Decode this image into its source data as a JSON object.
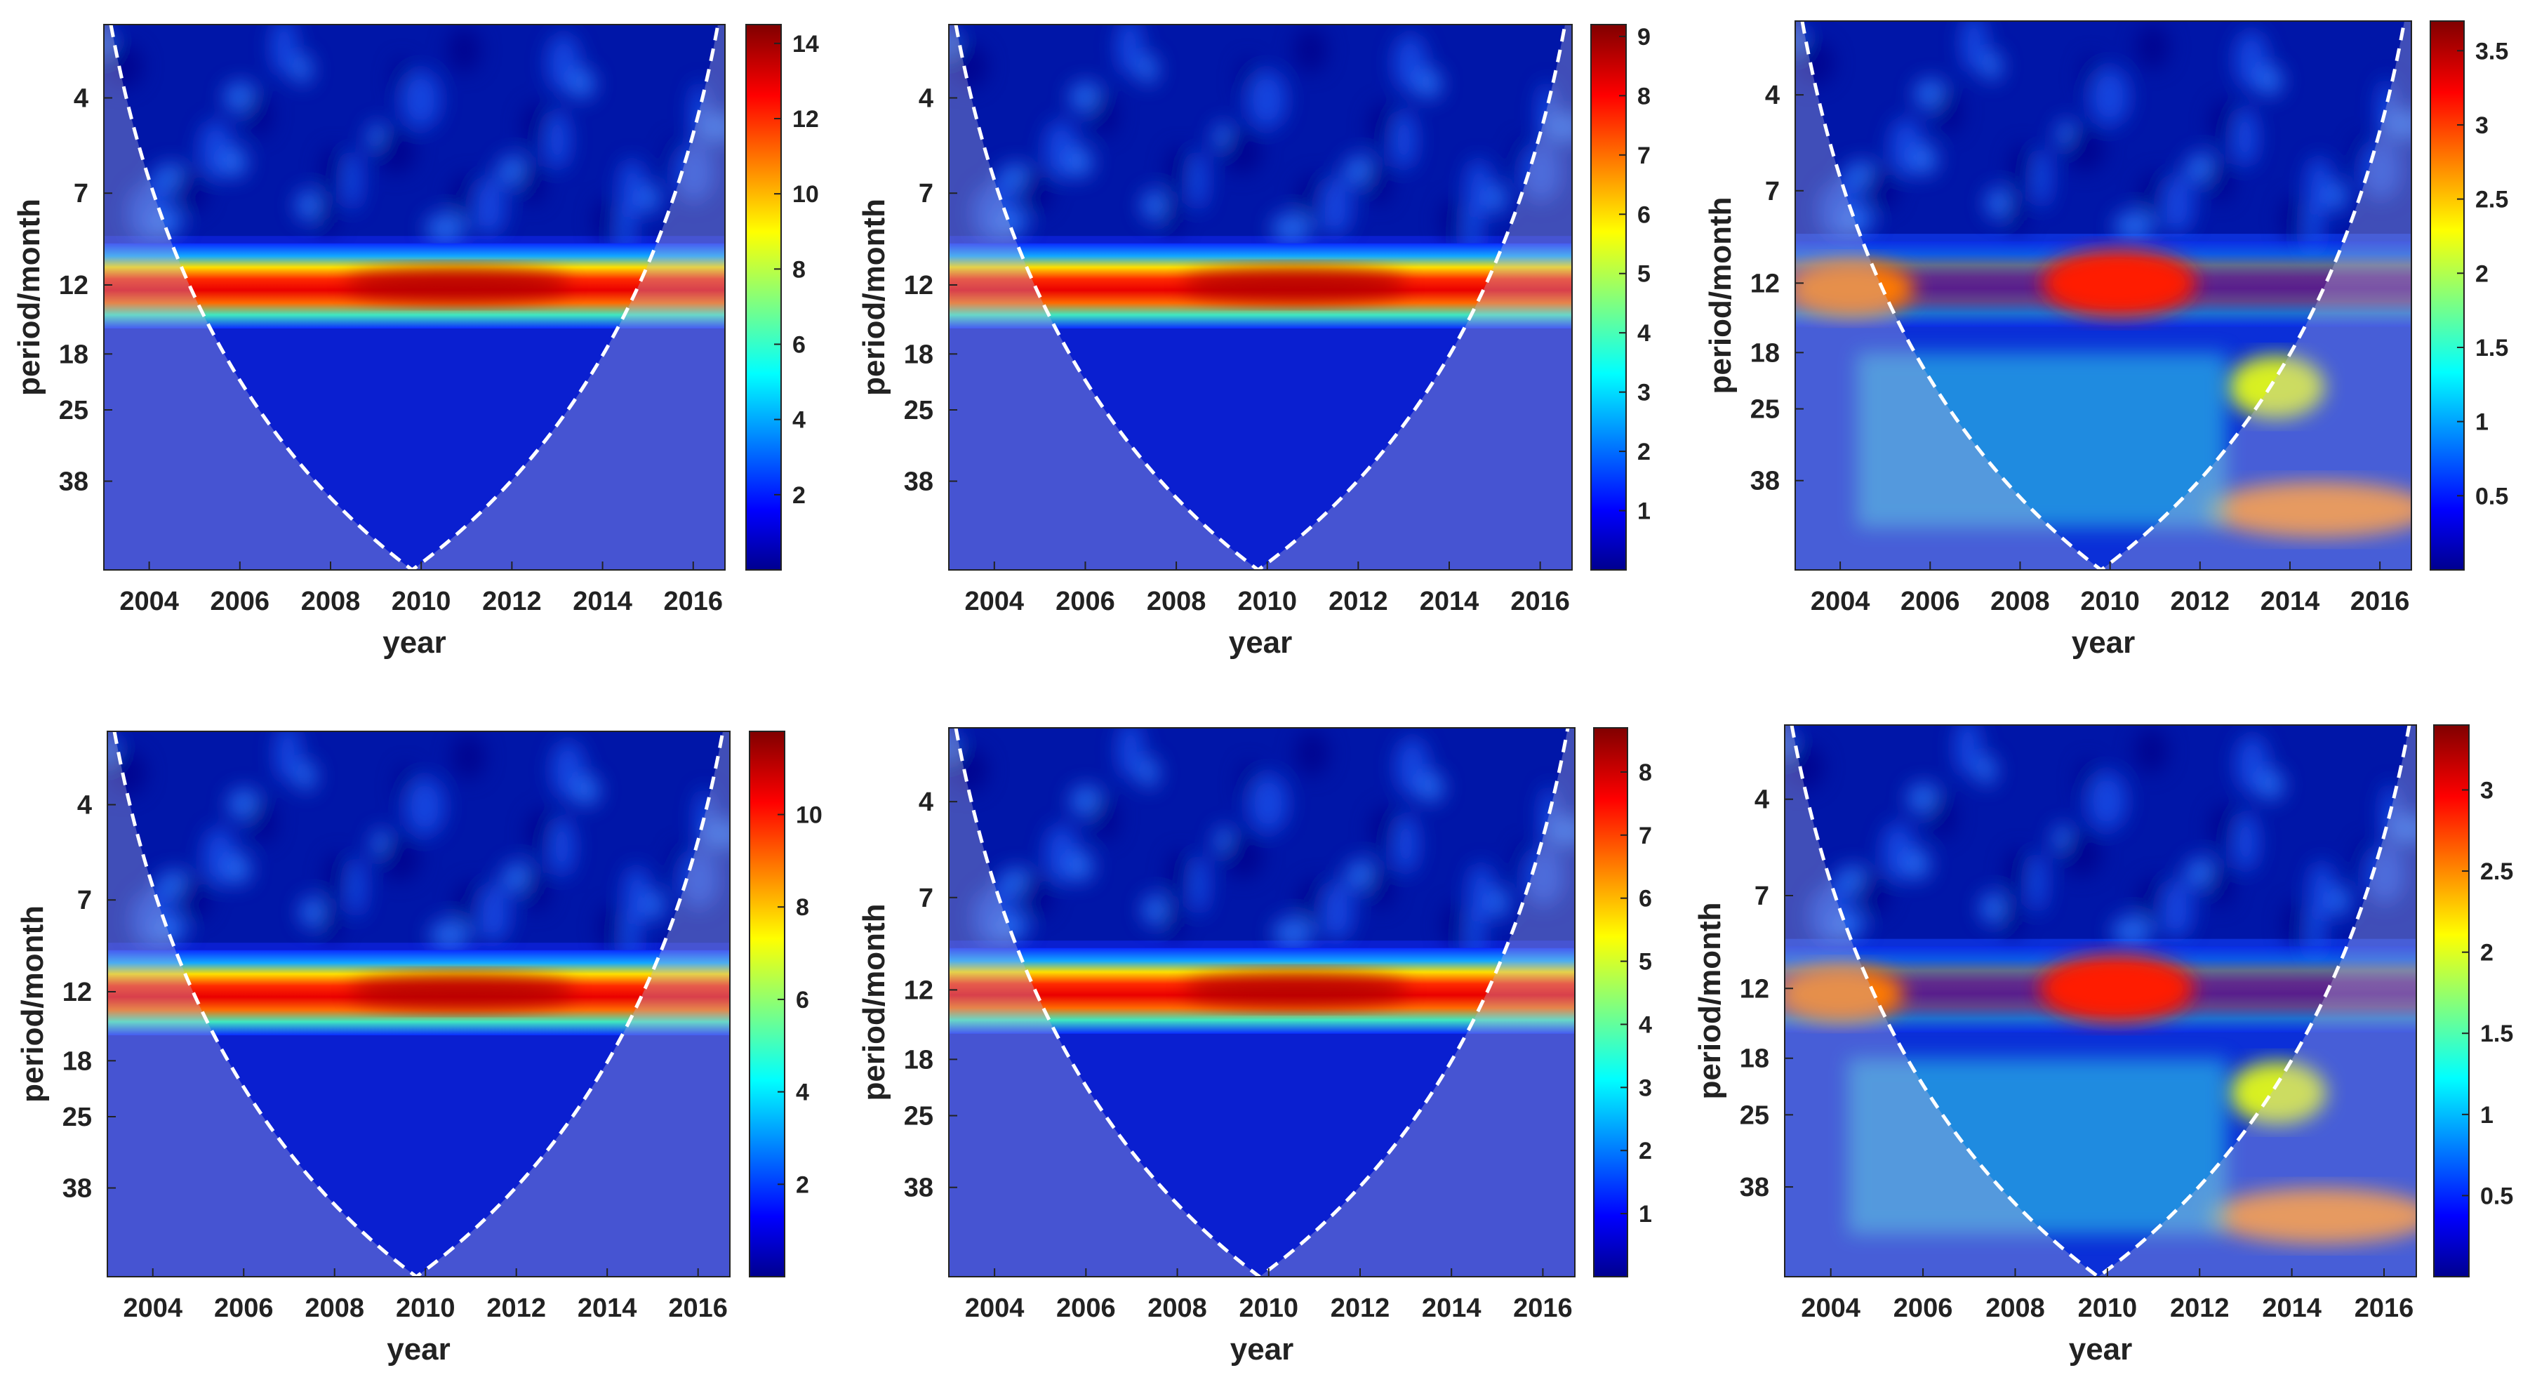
{
  "chart_data": [
    {
      "type": "heatmap",
      "title": "",
      "xlabel": "year",
      "ylabel": "period/month",
      "xticks": [
        "2004",
        "2006",
        "2008",
        "2010",
        "2012",
        "2014",
        "2016"
      ],
      "yticks": [
        "4",
        "7",
        "12",
        "18",
        "25",
        "38"
      ],
      "xlim": [
        2003,
        2016.7
      ],
      "colorbar": {
        "ticks": [
          "2",
          "4",
          "6",
          "8",
          "10",
          "12",
          "14"
        ],
        "min": 0,
        "max": 14.5
      },
      "dominant_period_month": 12,
      "cone_of_influence": "white dashed parabola, vertex near 2009.8",
      "peak_year": 2010.8,
      "colorscale": "jet"
    },
    {
      "type": "heatmap",
      "title": "",
      "xlabel": "year",
      "ylabel": "period/month",
      "xticks": [
        "2004",
        "2006",
        "2008",
        "2010",
        "2012",
        "2014",
        "2016"
      ],
      "yticks": [
        "4",
        "7",
        "12",
        "18",
        "25",
        "38"
      ],
      "xlim": [
        2003,
        2016.7
      ],
      "colorbar": {
        "ticks": [
          "1",
          "2",
          "3",
          "4",
          "5",
          "6",
          "7",
          "8",
          "9"
        ],
        "min": 0,
        "max": 9.2
      },
      "dominant_period_month": 12,
      "cone_of_influence": "white dashed parabola, vertex near 2009.8",
      "peak_year": 2010.6,
      "colorscale": "jet"
    },
    {
      "type": "heatmap",
      "title": "",
      "xlabel": "year",
      "ylabel": "period/month",
      "xticks": [
        "2004",
        "2006",
        "2008",
        "2010",
        "2012",
        "2014",
        "2016"
      ],
      "yticks": [
        "4",
        "7",
        "12",
        "18",
        "25",
        "38"
      ],
      "xlim": [
        2003,
        2016.7
      ],
      "colorbar": {
        "ticks": [
          "0.5",
          "1",
          "1.5",
          "2",
          "2.5",
          "3",
          "3.5"
        ],
        "min": 0,
        "max": 3.7
      },
      "dominant_period_month": 12,
      "cone_of_influence": "white dashed parabola, vertex near 2009.8",
      "peak_year": 2010.2,
      "colorscale": "jet"
    },
    {
      "type": "heatmap",
      "title": "",
      "xlabel": "year",
      "ylabel": "period/month",
      "xticks": [
        "2004",
        "2006",
        "2008",
        "2010",
        "2012",
        "2014",
        "2016"
      ],
      "yticks": [
        "4",
        "7",
        "12",
        "18",
        "25",
        "38"
      ],
      "xlim": [
        2003,
        2016.7
      ],
      "colorbar": {
        "ticks": [
          "2",
          "4",
          "6",
          "8",
          "10"
        ],
        "min": 0,
        "max": 11.8
      },
      "dominant_period_month": 12,
      "cone_of_influence": "white dashed parabola, vertex near 2009.8",
      "peak_year": 2010.8,
      "colorscale": "jet"
    },
    {
      "type": "heatmap",
      "title": "",
      "xlabel": "year",
      "ylabel": "period/month",
      "xticks": [
        "2004",
        "2006",
        "2008",
        "2010",
        "2012",
        "2014",
        "2016"
      ],
      "yticks": [
        "4",
        "7",
        "12",
        "18",
        "25",
        "38"
      ],
      "xlim": [
        2003,
        2016.7
      ],
      "colorbar": {
        "ticks": [
          "1",
          "2",
          "3",
          "4",
          "5",
          "6",
          "7",
          "8"
        ],
        "min": 0,
        "max": 8.7
      },
      "dominant_period_month": 12,
      "cone_of_influence": "white dashed parabola, vertex near 2009.8",
      "peak_year": 2010.6,
      "colorscale": "jet"
    },
    {
      "type": "heatmap",
      "title": "",
      "xlabel": "year",
      "ylabel": "period/month",
      "xticks": [
        "2004",
        "2006",
        "2008",
        "2010",
        "2012",
        "2014",
        "2016"
      ],
      "yticks": [
        "4",
        "7",
        "12",
        "18",
        "25",
        "38"
      ],
      "xlim": [
        2003,
        2016.7
      ],
      "colorbar": {
        "ticks": [
          "0.5",
          "1",
          "1.5",
          "2",
          "2.5",
          "3"
        ],
        "min": 0,
        "max": 3.4
      },
      "dominant_period_month": 12,
      "cone_of_influence": "white dashed parabola, vertex near 2009.8",
      "peak_year": 2010.2,
      "colorscale": "jet"
    }
  ]
}
